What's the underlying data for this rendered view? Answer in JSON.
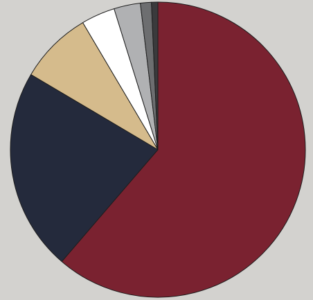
{
  "chart_data": {
    "type": "pie",
    "title": "",
    "slices": [
      {
        "value": 61.3,
        "color": "#7a2230"
      },
      {
        "value": 22.2,
        "color": "#242a3c"
      },
      {
        "value": 8.0,
        "color": "#d5bb8c"
      },
      {
        "value": 3.7,
        "color": "#ffffff"
      },
      {
        "value": 2.9,
        "color": "#b0b1b3"
      },
      {
        "value": 1.2,
        "color": "#6d6e70"
      },
      {
        "value": 0.7,
        "color": "#3a3a3c"
      }
    ],
    "start_angle_deg": 0,
    "direction": "clockwise",
    "legend": "none"
  }
}
